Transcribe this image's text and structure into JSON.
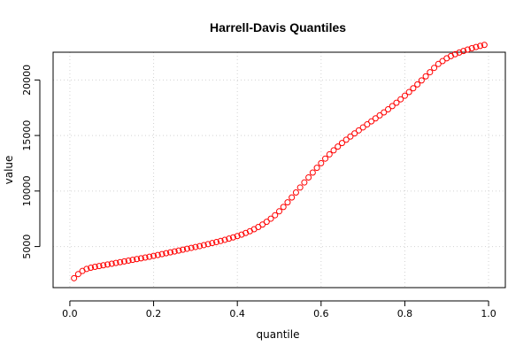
{
  "chart_data": {
    "type": "scatter",
    "title": "Harrell-Davis Quantiles",
    "xlabel": "quantile",
    "ylabel": "value",
    "xlim": [
      -0.04,
      1.04
    ],
    "ylim": [
      1300,
      22500
    ],
    "xticks": [
      0.0,
      0.2,
      0.4,
      0.6,
      0.8,
      1.0
    ],
    "xtick_labels": [
      "0.0",
      "0.2",
      "0.4",
      "0.6",
      "0.8",
      "1.0"
    ],
    "yticks": [
      5000,
      10000,
      15000,
      20000
    ],
    "ytick_labels": [
      "5000",
      "10000",
      "15000",
      "20000"
    ],
    "grid": true,
    "marker": "open-circle",
    "point_color": "#ff0000",
    "series": [
      {
        "x": [
          0.01,
          0.02,
          0.03,
          0.04,
          0.05,
          0.06,
          0.07,
          0.08,
          0.09,
          0.1,
          0.11,
          0.12,
          0.13,
          0.14,
          0.15,
          0.16,
          0.17,
          0.18,
          0.19,
          0.2,
          0.21,
          0.22,
          0.23,
          0.24,
          0.25,
          0.26,
          0.27,
          0.28,
          0.29,
          0.3,
          0.31,
          0.32,
          0.33,
          0.34,
          0.35,
          0.36,
          0.37,
          0.38,
          0.39,
          0.4,
          0.41,
          0.42,
          0.43,
          0.44,
          0.45,
          0.46,
          0.47,
          0.48,
          0.49,
          0.5,
          0.51,
          0.52,
          0.53,
          0.54,
          0.55,
          0.56,
          0.57,
          0.58,
          0.59,
          0.6,
          0.61,
          0.62,
          0.63,
          0.64,
          0.65,
          0.66,
          0.67,
          0.68,
          0.69,
          0.7,
          0.71,
          0.72,
          0.73,
          0.74,
          0.75,
          0.76,
          0.77,
          0.78,
          0.79,
          0.8,
          0.81,
          0.82,
          0.83,
          0.84,
          0.85,
          0.86,
          0.87,
          0.88,
          0.89,
          0.9,
          0.91,
          0.92,
          0.93,
          0.94,
          0.95,
          0.96,
          0.97,
          0.98,
          0.99
        ],
        "values": [
          2150,
          2520,
          2800,
          2980,
          3090,
          3170,
          3240,
          3310,
          3380,
          3450,
          3520,
          3590,
          3660,
          3730,
          3800,
          3870,
          3940,
          4010,
          4080,
          4160,
          4240,
          4320,
          4400,
          4480,
          4560,
          4640,
          4720,
          4800,
          4880,
          4960,
          5040,
          5130,
          5220,
          5310,
          5400,
          5500,
          5600,
          5710,
          5820,
          5940,
          6070,
          6220,
          6380,
          6560,
          6760,
          6980,
          7230,
          7510,
          7820,
          8170,
          8560,
          8980,
          9420,
          9870,
          10320,
          10770,
          11220,
          11660,
          12090,
          12510,
          12920,
          13300,
          13660,
          14000,
          14320,
          14620,
          14910,
          15190,
          15460,
          15730,
          16000,
          16270,
          16540,
          16810,
          17080,
          17360,
          17650,
          17950,
          18260,
          18580,
          18910,
          19250,
          19600,
          19960,
          20330,
          20700,
          21090,
          21440,
          21700,
          21950,
          22150,
          22320,
          22470,
          22610,
          22740,
          22860,
          22970,
          23070,
          23160
        ]
      }
    ]
  }
}
